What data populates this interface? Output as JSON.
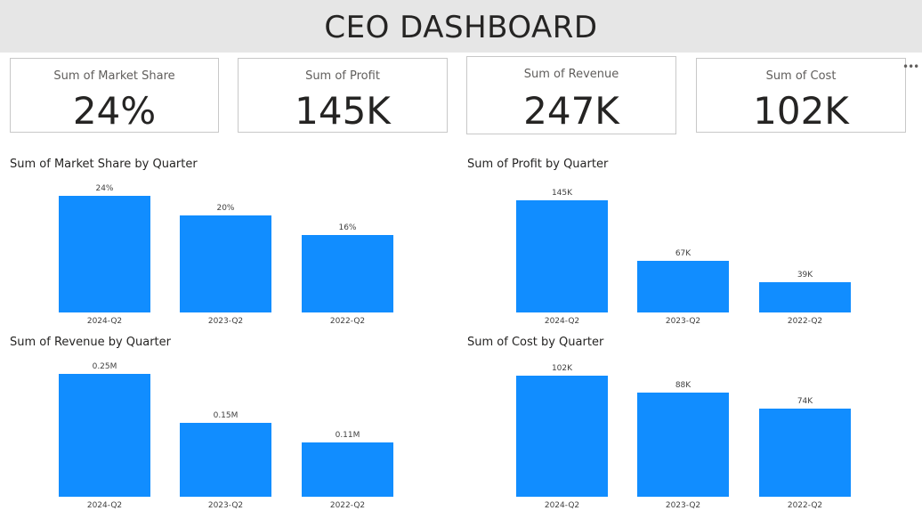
{
  "header": {
    "title": "CEO DASHBOARD"
  },
  "cards": [
    {
      "label": "Sum of Market Share",
      "value": "24%"
    },
    {
      "label": "Sum of Profit",
      "value": "145K"
    },
    {
      "label": "Sum of Revenue",
      "value": "247K"
    },
    {
      "label": "Sum of Cost",
      "value": "102K"
    }
  ],
  "more_options": {
    "glyph": "•••"
  },
  "colors": {
    "bar": "#118dff",
    "header_bg": "#e6e6e6"
  },
  "chart_data": [
    {
      "type": "bar",
      "title": "Sum of Market Share by Quarter",
      "categories": [
        "2024-Q2",
        "2023-Q2",
        "2022-Q2"
      ],
      "values": [
        24,
        20,
        16
      ],
      "labels": [
        "24%",
        "20%",
        "16%"
      ],
      "xlabel": "",
      "ylabel": "",
      "ylim": [
        0,
        24
      ]
    },
    {
      "type": "bar",
      "title": "Sum of Profit by Quarter",
      "categories": [
        "2024-Q2",
        "2023-Q2",
        "2022-Q2"
      ],
      "values": [
        145,
        67,
        39
      ],
      "labels": [
        "145K",
        "67K",
        "39K"
      ],
      "xlabel": "",
      "ylabel": "",
      "ylim": [
        0,
        145
      ]
    },
    {
      "type": "bar",
      "title": "Sum of Revenue by Quarter",
      "categories": [
        "2024-Q2",
        "2023-Q2",
        "2022-Q2"
      ],
      "values": [
        0.25,
        0.15,
        0.11
      ],
      "labels": [
        "0.25M",
        "0.15M",
        "0.11M"
      ],
      "xlabel": "",
      "ylabel": "",
      "ylim": [
        0,
        0.25
      ]
    },
    {
      "type": "bar",
      "title": "Sum of Cost by Quarter",
      "categories": [
        "2024-Q2",
        "2023-Q2",
        "2022-Q2"
      ],
      "values": [
        102,
        88,
        74
      ],
      "labels": [
        "102K",
        "88K",
        "74K"
      ],
      "xlabel": "",
      "ylabel": "",
      "ylim": [
        0,
        102
      ]
    }
  ]
}
